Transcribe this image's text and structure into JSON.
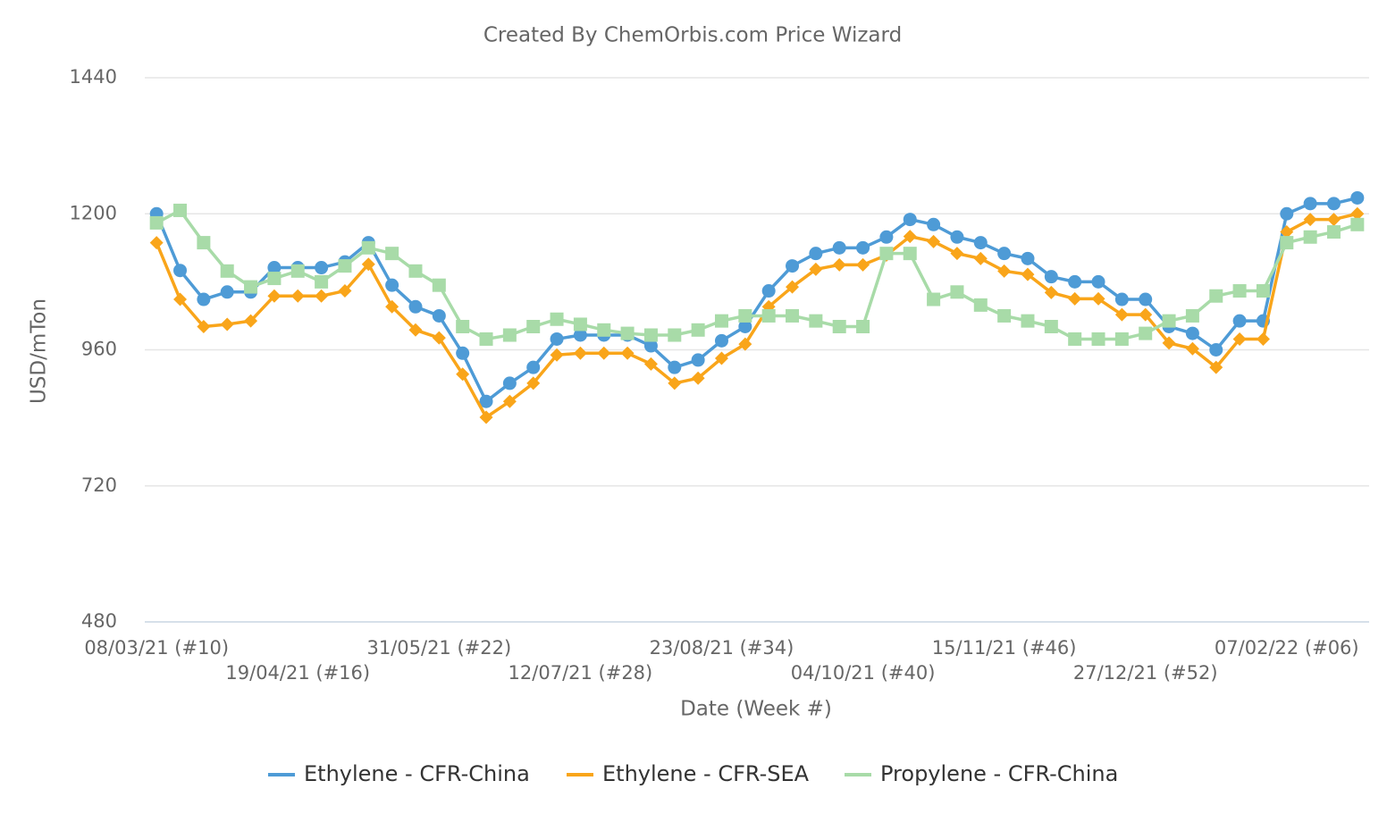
{
  "chart_data": {
    "type": "line",
    "title": "Created By ChemOrbis.com Price Wizard",
    "x_label": "Date (Week #)",
    "y_label": "USD/mTon",
    "categories": [
      "08/03/21 (#10)",
      null,
      null,
      null,
      null,
      null,
      "19/04/21 (#16)",
      null,
      null,
      null,
      null,
      null,
      "31/05/21 (#22)",
      null,
      null,
      null,
      null,
      null,
      "12/07/21 (#28)",
      null,
      null,
      null,
      null,
      null,
      "23/08/21 (#34)",
      null,
      null,
      null,
      null,
      null,
      "04/10/21 (#40)",
      null,
      null,
      null,
      null,
      null,
      "15/11/21 (#46)",
      null,
      null,
      null,
      null,
      null,
      "27/12/21 (#52)",
      null,
      null,
      null,
      null,
      null,
      "07/02/22 (#06)",
      null,
      null,
      null
    ],
    "ylim": [
      480,
      1440
    ],
    "yticks": [
      480,
      720,
      960,
      1200,
      1440
    ],
    "grid": true,
    "legend": "bottom",
    "series": [
      {
        "name": "Ethylene - CFR-China",
        "color": "#4e9bd6",
        "marker": "circle",
        "values": [
          1200,
          1100,
          1049,
          1062,
          1062,
          1105,
          1105,
          1105,
          1115,
          1149,
          1074,
          1036,
          1020,
          954,
          869,
          901,
          929,
          979,
          986,
          986,
          986,
          967,
          929,
          942,
          976,
          1001,
          1064,
          1108,
          1130,
          1140,
          1140,
          1159,
          1190,
          1181,
          1159,
          1149,
          1130,
          1121,
          1089,
          1080,
          1080,
          1049,
          1049,
          1001,
          989,
          960,
          1011,
          1011,
          1200,
          1218,
          1218,
          1228
        ]
      },
      {
        "name": "Ethylene - CFR-SEA",
        "color": "#f9a51a",
        "marker": "diamond",
        "values": [
          1149,
          1049,
          1001,
          1005,
          1011,
          1055,
          1055,
          1055,
          1064,
          1111,
          1036,
          995,
          981,
          917,
          841,
          869,
          901,
          951,
          954,
          954,
          954,
          935,
          901,
          910,
          945,
          970,
          1036,
          1071,
          1102,
          1110,
          1110,
          1127,
          1160,
          1151,
          1130,
          1121,
          1099,
          1093,
          1061,
          1050,
          1050,
          1022,
          1022,
          972,
          962,
          929,
          979,
          979,
          1168,
          1190,
          1190,
          1200
        ]
      },
      {
        "name": "Propylene - CFR-China",
        "color": "#a8dba8",
        "marker": "square",
        "values": [
          1184,
          1206,
          1149,
          1099,
          1071,
          1086,
          1099,
          1080,
          1108,
          1140,
          1130,
          1099,
          1074,
          1001,
          979,
          986,
          1001,
          1014,
          1005,
          995,
          989,
          986,
          986,
          995,
          1011,
          1020,
          1020,
          1020,
          1011,
          1001,
          1001,
          1130,
          1130,
          1049,
          1062,
          1039,
          1020,
          1011,
          1001,
          979,
          979,
          979,
          989,
          1011,
          1020,
          1055,
          1064,
          1064,
          1149,
          1159,
          1168,
          1181
        ]
      }
    ]
  }
}
